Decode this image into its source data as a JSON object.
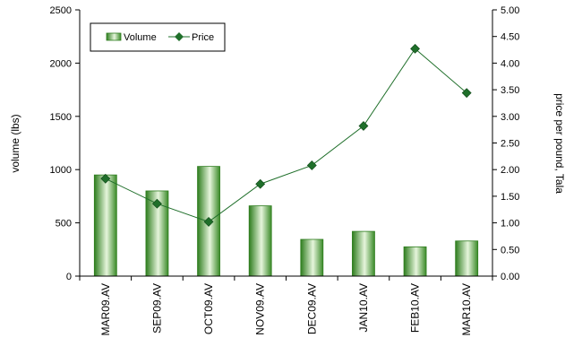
{
  "chart_data": {
    "type": "bar",
    "categories": [
      "MAR09.AV",
      "SEP09.AV",
      "OCT09.AV",
      "NOV09.AV",
      "DEC09.AV",
      "JAN10.AV",
      "FEB10.AV",
      "MAR10.AV"
    ],
    "series": [
      {
        "name": "Volume",
        "type": "bar",
        "axis": "left",
        "values": [
          950,
          800,
          1030,
          660,
          345,
          420,
          275,
          330
        ]
      },
      {
        "name": "Price",
        "type": "line",
        "axis": "right",
        "values": [
          1.83,
          1.36,
          1.02,
          1.73,
          2.08,
          2.82,
          4.27,
          3.44
        ]
      }
    ],
    "ylabel": "volume (lbs)",
    "y2label": "price per pound, Tala",
    "ylim": [
      0,
      2500
    ],
    "y2lim": [
      0,
      5.0
    ],
    "yticks": [
      "0",
      "500",
      "1000",
      "1500",
      "2000",
      "2500"
    ],
    "y2ticks": [
      "0.00",
      "0.50",
      "1.00",
      "1.50",
      "2.00",
      "2.50",
      "3.00",
      "3.50",
      "4.00",
      "4.50",
      "5.00"
    ],
    "grid": false,
    "legend_position": "top-left",
    "colors": {
      "bar_dark": "#2e7d1e",
      "bar_light": "#e6f5dc",
      "line": "#1f6f2a",
      "marker": "#1f6f2a"
    }
  }
}
